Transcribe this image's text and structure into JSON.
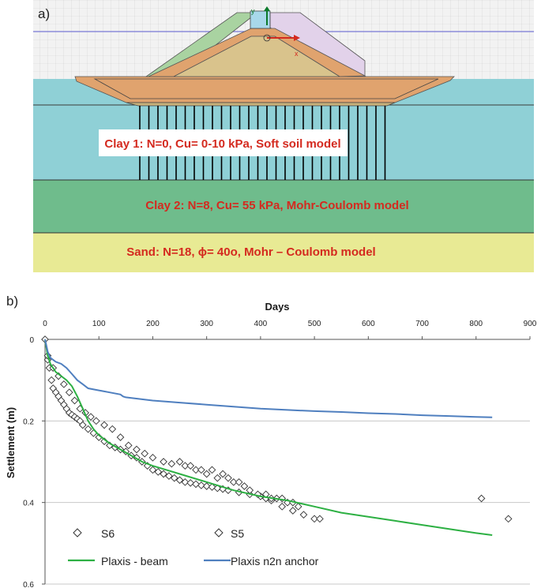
{
  "panel_a": {
    "label": "a)",
    "axis_markers": {
      "x": "x",
      "y": "y"
    },
    "layers": {
      "clay1": "Clay 1: N=0, Cu= 0-10 kPa, Soft soil model",
      "clay2": "Clay 2: N=8, Cu= 55 kPa, Mohr-Coulomb model",
      "sand": "Sand: N=18, ϕ= 40o, Mohr – Coulomb model"
    },
    "colors": {
      "background": "#f2f2f2",
      "grid": "#cfcfcf",
      "water_line": "#7a78d6",
      "clay1": "#8fd0d6",
      "clay2": "#6fbc8c",
      "sand": "#e8ea94",
      "embankment_fill": "#c9b27a",
      "embankment_body": "#d9c38c",
      "crust": "#e0a36e",
      "left_wedge": "#a9d3a1",
      "right_wedge": "#e2d2ea",
      "crest_box": "#a8d8ea",
      "drains": "#000000",
      "label_text": "#d42a1f"
    }
  },
  "panel_b": {
    "label": "b)",
    "colors": {
      "beam": "#2db043",
      "anchor": "#4f7fbf",
      "markers": "#333333",
      "grid": "#c8c8c8"
    }
  },
  "chart_data": {
    "type": "line",
    "title": "",
    "xlabel": "Days",
    "ylabel": "Settlement (m)",
    "xlim": [
      0,
      900
    ],
    "ylim": [
      0,
      0.6
    ],
    "x_ticks": [
      "0",
      "100",
      "200",
      "300",
      "400",
      "500",
      "600",
      "700",
      "800",
      "900"
    ],
    "y_ticks": [
      "0",
      "0.2",
      "0.4",
      "0.6"
    ],
    "x_tick_values": [
      0,
      100,
      200,
      300,
      400,
      500,
      600,
      700,
      800,
      900
    ],
    "y_tick_values": [
      0,
      0.2,
      0.4,
      0.6
    ],
    "x_axis_position": "top",
    "y_axis_inverted": true,
    "grid": "horizontal",
    "legend": [
      "S6",
      "S5",
      "Plaxis - beam",
      "Plaxis n2n anchor"
    ],
    "legend_placement": "bottom-left",
    "series": [
      {
        "name": "Plaxis - beam",
        "kind": "line",
        "x": [
          0,
          5,
          10,
          20,
          30,
          40,
          50,
          60,
          70,
          80,
          90,
          100,
          110,
          120,
          140,
          160,
          180,
          200,
          250,
          300,
          350,
          400,
          450,
          500,
          550,
          600,
          650,
          700,
          750,
          800,
          830
        ],
        "y": [
          0,
          0.04,
          0.06,
          0.08,
          0.09,
          0.1,
          0.115,
          0.14,
          0.17,
          0.2,
          0.22,
          0.235,
          0.245,
          0.255,
          0.27,
          0.285,
          0.3,
          0.31,
          0.33,
          0.35,
          0.37,
          0.385,
          0.395,
          0.41,
          0.425,
          0.435,
          0.445,
          0.455,
          0.465,
          0.475,
          0.48
        ]
      },
      {
        "name": "Plaxis n2n anchor",
        "kind": "line",
        "x": [
          0,
          5,
          10,
          20,
          30,
          40,
          50,
          60,
          70,
          80,
          100,
          120,
          140,
          145,
          150,
          200,
          250,
          300,
          350,
          400,
          450,
          500,
          550,
          600,
          650,
          700,
          750,
          800,
          830
        ],
        "y": [
          0,
          0.03,
          0.045,
          0.055,
          0.06,
          0.07,
          0.085,
          0.1,
          0.11,
          0.12,
          0.125,
          0.13,
          0.135,
          0.14,
          0.142,
          0.15,
          0.155,
          0.16,
          0.165,
          0.17,
          0.173,
          0.176,
          0.178,
          0.181,
          0.183,
          0.186,
          0.188,
          0.19,
          0.191
        ]
      },
      {
        "name": "S6",
        "kind": "scatter",
        "marker": "diamond",
        "x": [
          0,
          5,
          8,
          12,
          15,
          20,
          25,
          30,
          35,
          40,
          45,
          50,
          55,
          60,
          65,
          70,
          80,
          90,
          100,
          110,
          120,
          130,
          140,
          150,
          160,
          170,
          180,
          190,
          200,
          210,
          220,
          230,
          240,
          250,
          260,
          270,
          280,
          290,
          300,
          310,
          320,
          330,
          340,
          360,
          380,
          400,
          410,
          420,
          440,
          460,
          480,
          500,
          510
        ],
        "y": [
          0,
          0.05,
          0.07,
          0.1,
          0.12,
          0.13,
          0.14,
          0.15,
          0.16,
          0.17,
          0.18,
          0.185,
          0.19,
          0.195,
          0.2,
          0.21,
          0.22,
          0.23,
          0.24,
          0.25,
          0.26,
          0.265,
          0.27,
          0.275,
          0.285,
          0.29,
          0.3,
          0.31,
          0.32,
          0.325,
          0.33,
          0.335,
          0.34,
          0.345,
          0.35,
          0.352,
          0.355,
          0.358,
          0.36,
          0.362,
          0.365,
          0.367,
          0.37,
          0.375,
          0.38,
          0.385,
          0.39,
          0.395,
          0.41,
          0.42,
          0.43,
          0.44,
          0.44
        ]
      },
      {
        "name": "S5",
        "kind": "scatter",
        "marker": "diamond",
        "x": [
          5,
          15,
          25,
          35,
          45,
          55,
          65,
          75,
          85,
          95,
          110,
          125,
          140,
          155,
          170,
          185,
          200,
          220,
          235,
          250,
          260,
          270,
          280,
          290,
          300,
          310,
          320,
          330,
          340,
          350,
          360,
          370,
          380,
          395,
          410,
          420,
          430,
          440,
          450,
          460,
          470,
          810,
          860
        ],
        "y": [
          0.04,
          0.07,
          0.09,
          0.11,
          0.13,
          0.15,
          0.17,
          0.18,
          0.19,
          0.2,
          0.21,
          0.22,
          0.24,
          0.26,
          0.27,
          0.28,
          0.29,
          0.3,
          0.305,
          0.3,
          0.31,
          0.31,
          0.32,
          0.32,
          0.33,
          0.32,
          0.34,
          0.33,
          0.34,
          0.35,
          0.35,
          0.36,
          0.37,
          0.38,
          0.38,
          0.39,
          0.39,
          0.39,
          0.4,
          0.4,
          0.41,
          0.39,
          0.44
        ]
      }
    ]
  }
}
